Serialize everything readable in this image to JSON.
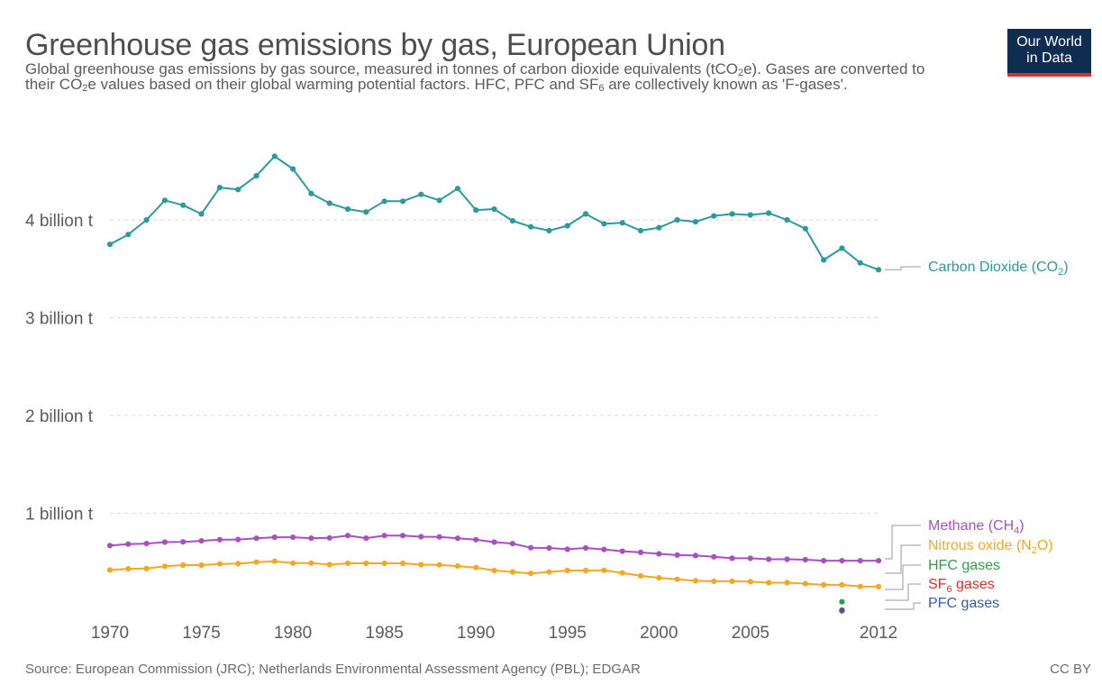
{
  "header": {
    "title": "Greenhouse gas emissions by gas, European Union",
    "subtitle": [
      "Global greenhouse gas emissions by gas source, measured in tonnes of carbon dioxide equivalents (tCO",
      "2",
      "e). Gases are converted to their CO",
      "2",
      "e values based on their global warming potential factors. HFC, PFC and SF",
      "6",
      " are collectively known as 'F-gases'."
    ]
  },
  "logo": {
    "line1": "Our World",
    "line2": "in Data"
  },
  "footer": {
    "source": "Source: European Commission (JRC); Netherlands Environmental Assessment Agency (PBL); EDGAR",
    "license": "CC BY"
  },
  "colors": {
    "co2": "#2a9a9e",
    "methane": "#a84fc4",
    "n2o": "#f5a623",
    "hfc": "#2e9e46",
    "sf6": "#d6312b",
    "pfc": "#3b5aa8",
    "logo_bg": "#0f2c51",
    "logo_bar": "#d6312b"
  },
  "chart_data": {
    "type": "line",
    "xlabel": "",
    "ylabel": "",
    "xlim": [
      1970,
      2012
    ],
    "ylim": [
      0,
      4700000000
    ],
    "grid": true,
    "legend": "right (labels at line ends)",
    "x_ticks": [
      1970,
      1975,
      1980,
      1985,
      1990,
      1995,
      2000,
      2005,
      2012
    ],
    "y_ticks": [
      {
        "value": 1000000000,
        "label": "1 billion t"
      },
      {
        "value": 2000000000,
        "label": "2 billion t"
      },
      {
        "value": 3000000000,
        "label": "3 billion t"
      },
      {
        "value": 4000000000,
        "label": "4 billion t"
      }
    ],
    "x": [
      1970,
      1971,
      1972,
      1973,
      1974,
      1975,
      1976,
      1977,
      1978,
      1979,
      1980,
      1981,
      1982,
      1983,
      1984,
      1985,
      1986,
      1987,
      1988,
      1989,
      1990,
      1991,
      1992,
      1993,
      1994,
      1995,
      1996,
      1997,
      1998,
      1999,
      2000,
      2001,
      2002,
      2003,
      2004,
      2005,
      2006,
      2007,
      2008,
      2009,
      2010,
      2011,
      2012
    ],
    "series": [
      {
        "key": "co2",
        "name": "Carbon Dioxide (CO₂)",
        "name_parts": [
          "Carbon Dioxide (CO",
          "2",
          ")"
        ],
        "values": [
          3750000000,
          3850000000,
          4000000000,
          4200000000,
          4150000000,
          4060000000,
          4330000000,
          4310000000,
          4450000000,
          4650000000,
          4520000000,
          4270000000,
          4170000000,
          4110000000,
          4080000000,
          4190000000,
          4190000000,
          4260000000,
          4200000000,
          4320000000,
          4100000000,
          4110000000,
          3990000000,
          3930000000,
          3890000000,
          3940000000,
          4060000000,
          3960000000,
          3970000000,
          3890000000,
          3920000000,
          4000000000,
          3980000000,
          4040000000,
          4060000000,
          4050000000,
          4070000000,
          4000000000,
          3910000000,
          3590000000,
          3710000000,
          3560000000,
          3490000000
        ]
      },
      {
        "key": "methane",
        "name": "Methane (CH₄)",
        "name_parts": [
          "Methane (CH",
          "4",
          ")"
        ],
        "values": [
          670000000,
          685000000,
          690000000,
          705000000,
          708000000,
          718000000,
          730000000,
          732000000,
          745000000,
          755000000,
          755000000,
          746000000,
          748000000,
          772000000,
          746000000,
          772000000,
          772000000,
          760000000,
          758000000,
          745000000,
          730000000,
          705000000,
          690000000,
          648000000,
          645000000,
          632000000,
          645000000,
          630000000,
          612000000,
          600000000,
          585000000,
          572000000,
          568000000,
          555000000,
          540000000,
          540000000,
          530000000,
          530000000,
          525000000,
          515000000,
          515000000,
          515000000,
          515000000
        ]
      },
      {
        "key": "n2o",
        "name": "Nitrous oxide (N₂O)",
        "name_parts": [
          "Nitrous oxide (N",
          "2",
          "O)"
        ],
        "values": [
          420000000,
          432000000,
          435000000,
          458000000,
          470000000,
          470000000,
          482000000,
          485000000,
          500000000,
          510000000,
          490000000,
          490000000,
          475000000,
          488000000,
          488000000,
          488000000,
          488000000,
          475000000,
          473000000,
          460000000,
          445000000,
          415000000,
          400000000,
          385000000,
          400000000,
          415000000,
          415000000,
          417000000,
          390000000,
          360000000,
          340000000,
          325000000,
          310000000,
          305000000,
          305000000,
          300000000,
          290000000,
          290000000,
          280000000,
          268000000,
          268000000,
          252000000,
          250000000
        ]
      },
      {
        "key": "hfc",
        "name": "HFC gases",
        "name_parts": [
          "HFC gases"
        ],
        "values": [
          null,
          null,
          null,
          null,
          null,
          null,
          null,
          null,
          null,
          null,
          null,
          null,
          null,
          null,
          null,
          null,
          null,
          null,
          null,
          null,
          null,
          null,
          null,
          null,
          null,
          null,
          null,
          null,
          null,
          null,
          null,
          null,
          null,
          null,
          null,
          null,
          null,
          null,
          null,
          null,
          95000000,
          null,
          null
        ]
      },
      {
        "key": "sf6",
        "name": "SF₆ gases",
        "name_parts": [
          "SF",
          "6",
          " gases"
        ],
        "values": [
          null,
          null,
          null,
          null,
          null,
          null,
          null,
          null,
          null,
          null,
          null,
          null,
          null,
          null,
          null,
          null,
          null,
          null,
          null,
          null,
          null,
          null,
          null,
          null,
          null,
          null,
          null,
          null,
          null,
          null,
          null,
          null,
          null,
          null,
          null,
          null,
          null,
          null,
          null,
          null,
          10000000,
          null,
          null
        ]
      },
      {
        "key": "pfc",
        "name": "PFC gases",
        "name_parts": [
          "PFC gases"
        ],
        "values": [
          null,
          null,
          null,
          null,
          null,
          null,
          null,
          null,
          null,
          null,
          null,
          null,
          null,
          null,
          null,
          null,
          null,
          null,
          null,
          null,
          null,
          null,
          null,
          null,
          null,
          null,
          null,
          null,
          null,
          null,
          null,
          null,
          null,
          null,
          null,
          null,
          null,
          null,
          null,
          null,
          3000000,
          null,
          null
        ]
      }
    ]
  }
}
